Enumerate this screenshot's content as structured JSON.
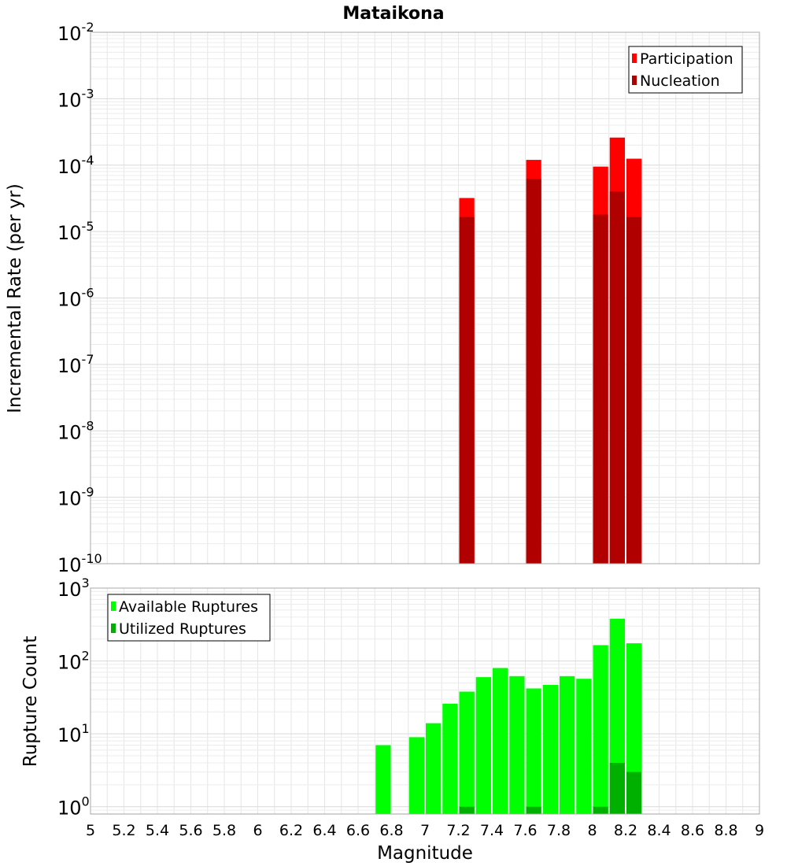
{
  "chart_data": [
    {
      "type": "bar",
      "title": "Mataikona",
      "ylabel": "Incremental Rate (per yr)",
      "xlabel": "",
      "yscale": "log",
      "ylim_exponents": [
        -10,
        -2
      ],
      "ytick_exponents": [
        -10,
        -9,
        -8,
        -7,
        -6,
        -5,
        -4,
        -3,
        -2
      ],
      "xlim": [
        5,
        9
      ],
      "grid": true,
      "legend_position": "top-right",
      "bar_width": 0.1,
      "series": [
        {
          "name": "Participation",
          "color": "#ff0000",
          "x": [
            7.25,
            7.65,
            8.05,
            8.15,
            8.25
          ],
          "values": [
            3.2e-05,
            0.00012,
            9.5e-05,
            0.00026,
            0.000125
          ]
        },
        {
          "name": "Nucleation",
          "color": "#b00000",
          "x": [
            7.25,
            7.65,
            8.05,
            8.15,
            8.25
          ],
          "values": [
            1.65e-05,
            6.2e-05,
            1.8e-05,
            4e-05,
            1.65e-05
          ]
        }
      ]
    },
    {
      "type": "bar",
      "title": "",
      "ylabel": "Rupture Count",
      "xlabel": "Magnitude",
      "yscale": "log",
      "ylim_exponents": [
        -0.1,
        3
      ],
      "ytick_exponents": [
        0,
        1,
        2,
        3
      ],
      "xlim": [
        5,
        9
      ],
      "xticks": [
        "5",
        "5.2",
        "5.4",
        "5.6",
        "5.8",
        "6",
        "6.2",
        "6.4",
        "6.6",
        "6.8",
        "7",
        "7.2",
        "7.4",
        "7.6",
        "7.8",
        "8",
        "8.2",
        "8.4",
        "8.6",
        "8.8",
        "9"
      ],
      "grid": true,
      "legend_position": "top-left",
      "bar_width": 0.1,
      "series": [
        {
          "name": "Available Ruptures",
          "color": "#00ff00",
          "x": [
            6.75,
            6.95,
            7.05,
            7.15,
            7.25,
            7.35,
            7.45,
            7.55,
            7.65,
            7.75,
            7.85,
            7.95,
            8.05,
            8.15,
            8.25
          ],
          "values": [
            7,
            9,
            14,
            26,
            38,
            60,
            80,
            62,
            42,
            47,
            62,
            57,
            165,
            380,
            175
          ]
        },
        {
          "name": "Utilized Ruptures",
          "color": "#00b000",
          "x": [
            7.25,
            7.65,
            8.05,
            8.15,
            8.25
          ],
          "values": [
            1,
            1,
            1,
            4,
            3
          ]
        }
      ]
    }
  ]
}
